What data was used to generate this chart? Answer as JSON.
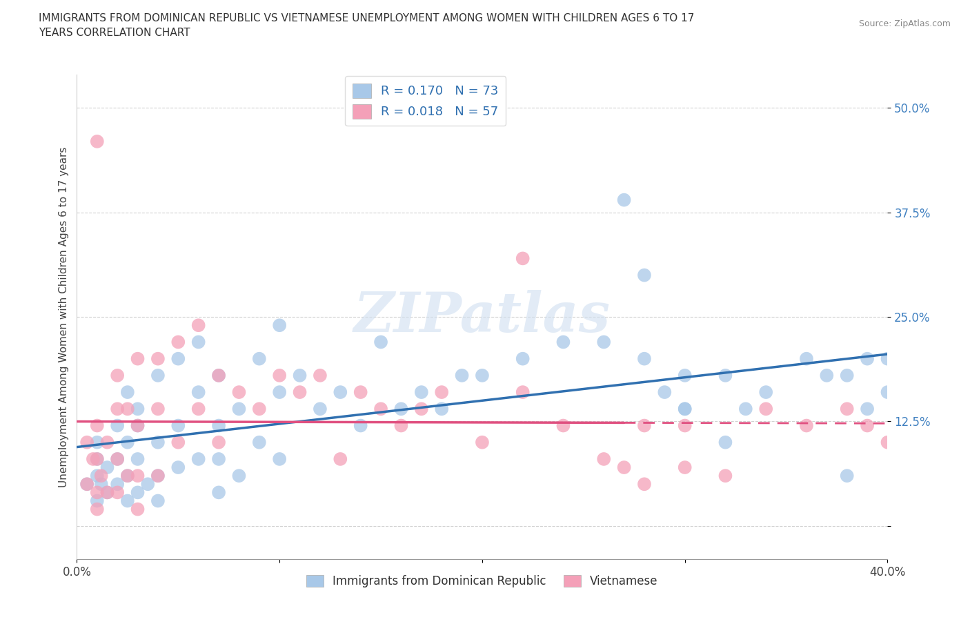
{
  "title": "IMMIGRANTS FROM DOMINICAN REPUBLIC VS VIETNAMESE UNEMPLOYMENT AMONG WOMEN WITH CHILDREN AGES 6 TO 17\nYEARS CORRELATION CHART",
  "source": "Source: ZipAtlas.com",
  "ylabel": "Unemployment Among Women with Children Ages 6 to 17 years",
  "xlim": [
    0.0,
    0.4
  ],
  "ylim": [
    -0.04,
    0.54
  ],
  "watermark": "ZIPatlas",
  "color_blue": "#a8c8e8",
  "color_pink": "#f4a0b8",
  "line_blue": "#3070b0",
  "line_pink": "#e05080",
  "bg_color": "#ffffff",
  "grid_color": "#cccccc",
  "blue_x": [
    0.005,
    0.01,
    0.01,
    0.01,
    0.01,
    0.012,
    0.015,
    0.015,
    0.02,
    0.02,
    0.02,
    0.025,
    0.025,
    0.025,
    0.025,
    0.03,
    0.03,
    0.03,
    0.03,
    0.035,
    0.04,
    0.04,
    0.04,
    0.04,
    0.05,
    0.05,
    0.05,
    0.06,
    0.06,
    0.06,
    0.07,
    0.07,
    0.07,
    0.07,
    0.08,
    0.08,
    0.09,
    0.09,
    0.1,
    0.1,
    0.1,
    0.11,
    0.12,
    0.13,
    0.14,
    0.15,
    0.16,
    0.17,
    0.18,
    0.19,
    0.2,
    0.22,
    0.24,
    0.26,
    0.28,
    0.29,
    0.3,
    0.3,
    0.32,
    0.33,
    0.34,
    0.36,
    0.37,
    0.38,
    0.39,
    0.39,
    0.4,
    0.4,
    0.27,
    0.28,
    0.3,
    0.32,
    0.38
  ],
  "blue_y": [
    0.05,
    0.08,
    0.06,
    0.1,
    0.03,
    0.05,
    0.07,
    0.04,
    0.08,
    0.12,
    0.05,
    0.16,
    0.1,
    0.06,
    0.03,
    0.14,
    0.08,
    0.04,
    0.12,
    0.05,
    0.18,
    0.1,
    0.06,
    0.03,
    0.2,
    0.12,
    0.07,
    0.22,
    0.16,
    0.08,
    0.18,
    0.12,
    0.08,
    0.04,
    0.14,
    0.06,
    0.2,
    0.1,
    0.24,
    0.16,
    0.08,
    0.18,
    0.14,
    0.16,
    0.12,
    0.22,
    0.14,
    0.16,
    0.14,
    0.18,
    0.18,
    0.2,
    0.22,
    0.22,
    0.2,
    0.16,
    0.18,
    0.14,
    0.18,
    0.14,
    0.16,
    0.2,
    0.18,
    0.18,
    0.2,
    0.14,
    0.2,
    0.16,
    0.39,
    0.3,
    0.14,
    0.1,
    0.06
  ],
  "pink_x": [
    0.005,
    0.005,
    0.008,
    0.01,
    0.01,
    0.01,
    0.01,
    0.012,
    0.015,
    0.015,
    0.02,
    0.02,
    0.02,
    0.02,
    0.025,
    0.025,
    0.03,
    0.03,
    0.03,
    0.03,
    0.04,
    0.04,
    0.04,
    0.05,
    0.05,
    0.06,
    0.06,
    0.07,
    0.07,
    0.08,
    0.09,
    0.1,
    0.11,
    0.12,
    0.13,
    0.14,
    0.15,
    0.16,
    0.17,
    0.18,
    0.2,
    0.22,
    0.24,
    0.26,
    0.28,
    0.3,
    0.32,
    0.34,
    0.36,
    0.38,
    0.39,
    0.4,
    0.27,
    0.28,
    0.3,
    0.22,
    0.01
  ],
  "pink_y": [
    0.1,
    0.05,
    0.08,
    0.12,
    0.08,
    0.04,
    0.02,
    0.06,
    0.1,
    0.04,
    0.14,
    0.08,
    0.18,
    0.04,
    0.14,
    0.06,
    0.2,
    0.12,
    0.06,
    0.02,
    0.2,
    0.14,
    0.06,
    0.22,
    0.1,
    0.24,
    0.14,
    0.18,
    0.1,
    0.16,
    0.14,
    0.18,
    0.16,
    0.18,
    0.08,
    0.16,
    0.14,
    0.12,
    0.14,
    0.16,
    0.1,
    0.16,
    0.12,
    0.08,
    0.12,
    0.12,
    0.06,
    0.14,
    0.12,
    0.14,
    0.12,
    0.1,
    0.07,
    0.05,
    0.07,
    0.32,
    0.46
  ]
}
